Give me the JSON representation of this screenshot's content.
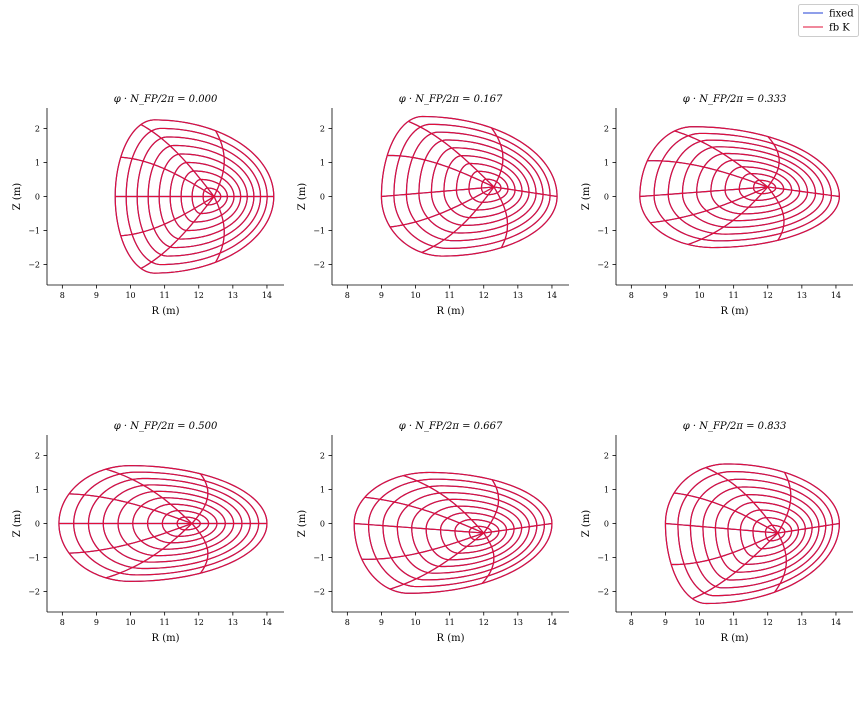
{
  "legend": {
    "entries": [
      {
        "name": "fixed",
        "color": "#1f3fd6"
      },
      {
        "name": "fb K",
        "color": "#e0103a"
      }
    ]
  },
  "chart_data": {
    "type": "line",
    "description_free": true,
    "xlabel": "R (m)",
    "ylabel": "Z (m)",
    "xticks": [
      8,
      9,
      10,
      11,
      12,
      13,
      14
    ],
    "yticks": [
      -2,
      -1,
      0,
      1,
      2
    ],
    "xlim": [
      7.55,
      14.5
    ],
    "ylim": [
      -2.6,
      2.6
    ],
    "grid": false,
    "legend_position": "top-right",
    "flux_surface_count": 9,
    "poloidal_line_count": 8,
    "panels": [
      {
        "title": "φ · N_FP/2π = 0.000",
        "outer_R": 14.2,
        "inner_R": 9.55,
        "top_R": 10.7,
        "top_Z": 2.25,
        "bottom_R": 10.7,
        "bottom_Z": -2.25,
        "axis_R": 12.45,
        "axis_Z": 0.0
      },
      {
        "title": "φ · N_FP/2π = 0.167",
        "outer_R": 14.15,
        "inner_R": 9.0,
        "top_R": 10.2,
        "top_Z": 2.35,
        "bottom_R": 10.8,
        "bottom_Z": -1.75,
        "axis_R": 12.3,
        "axis_Z": 0.28
      },
      {
        "title": "φ · N_FP/2π = 0.333",
        "outer_R": 14.1,
        "inner_R": 8.25,
        "top_R": 9.8,
        "top_Z": 2.05,
        "bottom_R": 10.4,
        "bottom_Z": -1.5,
        "axis_R": 12.0,
        "axis_Z": 0.28
      },
      {
        "title": "φ · N_FP/2π = 0.500",
        "outer_R": 14.0,
        "inner_R": 7.9,
        "top_R": 10.0,
        "top_Z": 1.7,
        "bottom_R": 10.0,
        "bottom_Z": -1.7,
        "axis_R": 11.8,
        "axis_Z": 0.0
      },
      {
        "title": "φ · N_FP/2π = 0.667",
        "outer_R": 14.0,
        "inner_R": 8.2,
        "top_R": 10.4,
        "top_Z": 1.5,
        "bottom_R": 9.8,
        "bottom_Z": -2.05,
        "axis_R": 12.0,
        "axis_Z": -0.28
      },
      {
        "title": "φ · N_FP/2π = 0.833",
        "outer_R": 14.1,
        "inner_R": 9.0,
        "top_R": 10.8,
        "top_Z": 1.75,
        "bottom_R": 10.2,
        "bottom_Z": -2.35,
        "axis_R": 12.3,
        "axis_Z": -0.28
      }
    ]
  }
}
